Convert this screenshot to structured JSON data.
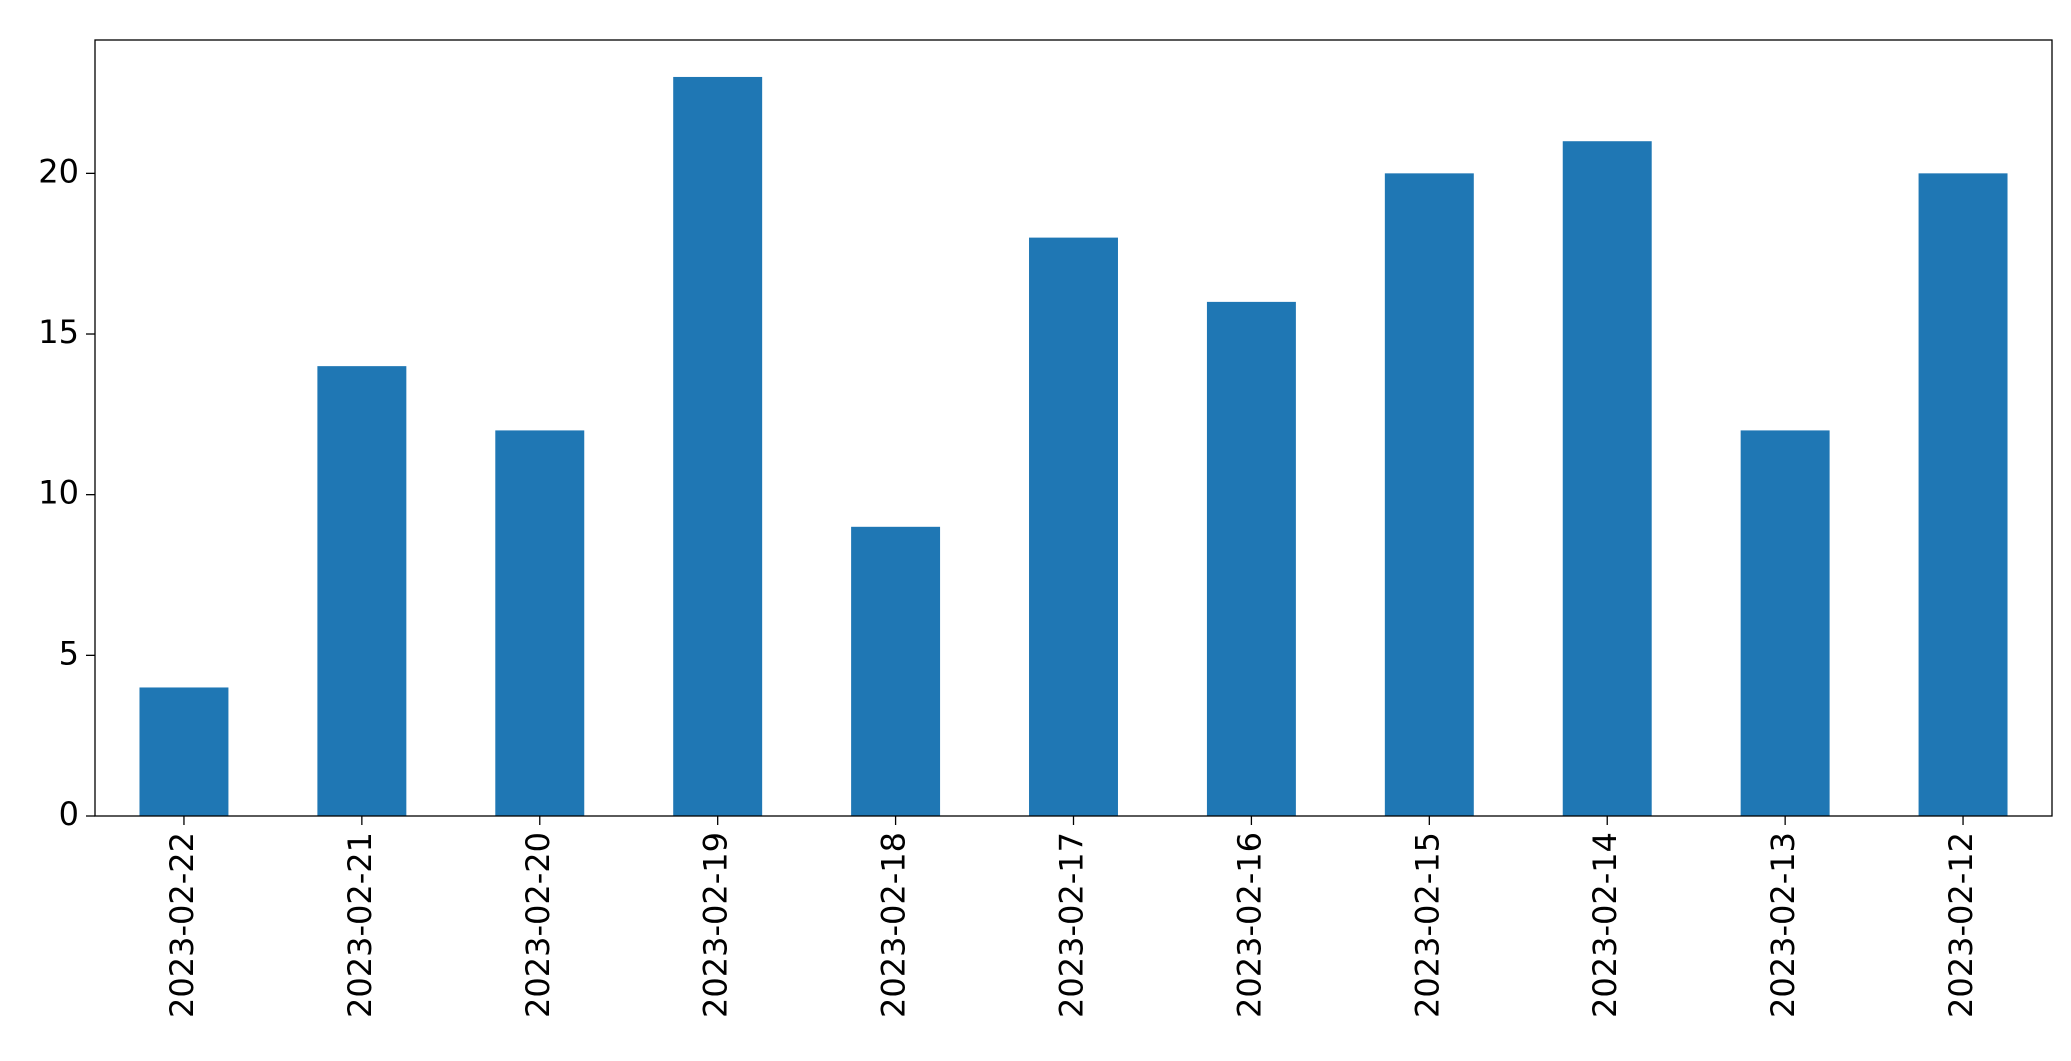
{
  "chart_data": {
    "type": "bar",
    "categories": [
      "2023-02-22",
      "2023-02-21",
      "2023-02-20",
      "2023-02-19",
      "2023-02-18",
      "2023-02-17",
      "2023-02-16",
      "2023-02-15",
      "2023-02-14",
      "2023-02-13",
      "2023-02-12"
    ],
    "values": [
      4,
      14,
      12,
      23,
      9,
      18,
      16,
      20,
      21,
      12,
      20
    ],
    "color": "#1f77b4",
    "ylim": [
      0,
      24.15
    ],
    "yticks": [
      0,
      5,
      10,
      15,
      20
    ],
    "grid": false
  }
}
